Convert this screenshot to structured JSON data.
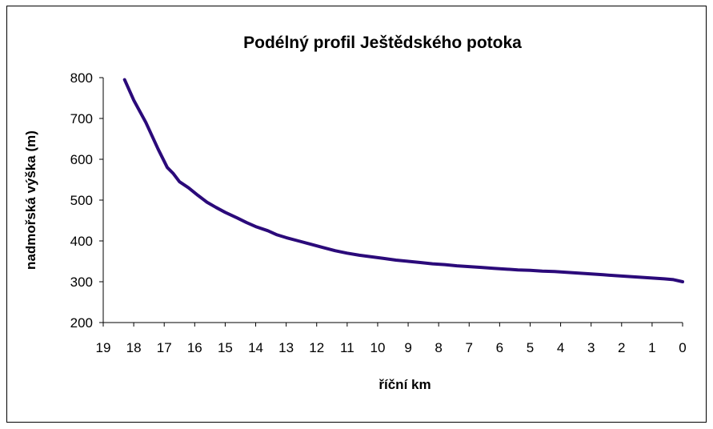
{
  "chart_data": {
    "type": "line",
    "title": "Podélný profil Ještědského potoka",
    "xlabel": "říční km",
    "ylabel": "nadmořská výška (m)",
    "xlim": [
      19,
      0
    ],
    "ylim": [
      200,
      800
    ],
    "x_reversed": true,
    "grid": false,
    "legend": "none",
    "x_ticks": [
      "19",
      "18",
      "17",
      "16",
      "15",
      "14",
      "13",
      "12",
      "11",
      "10",
      "9",
      "8",
      "7",
      "6",
      "5",
      "4",
      "3",
      "2",
      "1",
      "0"
    ],
    "y_ticks": [
      "800",
      "700",
      "600",
      "500",
      "400",
      "300",
      "200"
    ],
    "line_color": "#2b0a7a",
    "series": [
      {
        "x": [
          18.3,
          18.0,
          17.6,
          17.2,
          16.9,
          16.7,
          16.5,
          16.2,
          15.9,
          15.6,
          15.3,
          15.0,
          14.6,
          14.3,
          14.0,
          13.6,
          13.3,
          13.0,
          12.6,
          12.2,
          11.8,
          11.4,
          11.0,
          10.6,
          10.2,
          9.8,
          9.4,
          9.0,
          8.6,
          8.2,
          7.8,
          7.4,
          7.0,
          6.6,
          6.2,
          5.8,
          5.4,
          5.0,
          4.6,
          4.2,
          3.8,
          3.4,
          3.0,
          2.6,
          2.2,
          1.8,
          1.4,
          1.0,
          0.6,
          0.3,
          0.0
        ],
        "y": [
          795,
          745,
          690,
          625,
          580,
          565,
          545,
          530,
          512,
          495,
          482,
          470,
          456,
          445,
          435,
          425,
          415,
          408,
          400,
          392,
          384,
          376,
          370,
          365,
          361,
          357,
          353,
          350,
          347,
          344,
          342,
          339,
          337,
          335,
          333,
          331,
          329,
          328,
          326,
          325,
          323,
          321,
          319,
          317,
          315,
          313,
          311,
          309,
          307,
          305,
          300
        ]
      }
    ]
  }
}
